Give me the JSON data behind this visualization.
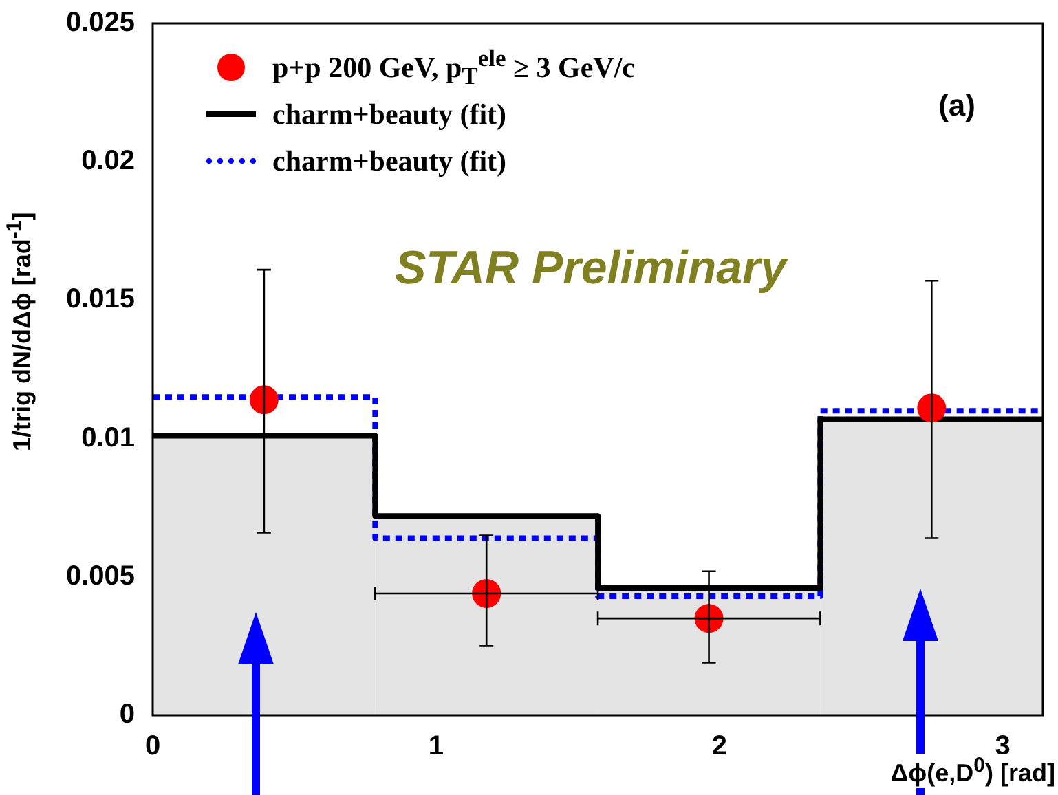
{
  "chart_data": {
    "type": "scatter",
    "xlabel": "Δϕ(e,D$^{0}$) [rad]",
    "ylabel": "1/trig dN/dΔϕ [rad$^{-1}$]",
    "annotations": [
      "(a)",
      "STAR Preliminary"
    ],
    "xlim": [
      0,
      3.1416
    ],
    "xticks": [
      0,
      1,
      2,
      3
    ],
    "ylim": [
      0,
      0.025
    ],
    "yticks": [
      0,
      0.005,
      0.01,
      0.015,
      0.02,
      0.025
    ],
    "grid": false,
    "legend": "top left",
    "marker": "circle",
    "series": [
      {
        "name": "p+p 200 GeV, p$_{T}$$^{ele}$ ≥ 3 GeV/c",
        "type": "scatter",
        "color": "#ff0000",
        "x": [
          0.393,
          1.178,
          1.963,
          2.749
        ],
        "values": [
          0.0114,
          0.0044,
          0.0035,
          0.0111
        ],
        "errors": [
          [
            0.0066,
            0.0161
          ],
          [
            0.0025,
            0.0065
          ],
          [
            0.0019,
            0.0052
          ],
          [
            0.0064,
            0.0157
          ]
        ],
        "xerrors": [
          null,
          [
            0.785,
            1.571
          ],
          [
            1.571,
            2.356
          ],
          null
        ]
      },
      {
        "type": "histogram",
        "color": "#e4e4e4",
        "bins": [
          0,
          0.785,
          1.571,
          2.356,
          3.1416
        ],
        "values": [
          0.0101,
          0.0072,
          0.0046,
          0.0107
        ]
      },
      {
        "name": "charm+beauty (fit)",
        "type": "step",
        "marker": "none",
        "color": "#000000",
        "line_style": "solid",
        "x": [
          0,
          0.785,
          1.571,
          2.356,
          3.1416
        ],
        "values": [
          0.0101,
          0.0072,
          0.0046,
          0.0107,
          0.0107
        ]
      },
      {
        "name": "charm+beauty (fit)",
        "type": "step",
        "marker": "none",
        "color": "#0000ff",
        "line_style": "dotted",
        "x": [
          0,
          0.785,
          1.571,
          2.356,
          3.1416
        ],
        "values": [
          0.0115,
          0.0064,
          0.0043,
          0.011,
          0.011
        ]
      }
    ]
  }
}
